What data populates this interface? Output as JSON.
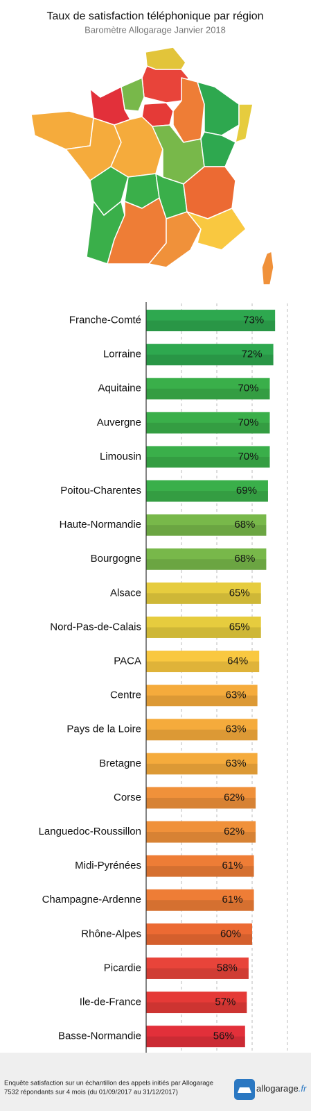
{
  "title": "Taux de satisfaction téléphonique par région",
  "subtitle": "Baromètre Allogarage Janvier 2018",
  "chart_data": {
    "type": "hbar",
    "categories": [
      "Franche-Comté",
      "Lorraine",
      "Aquitaine",
      "Auvergne",
      "Limousin",
      "Poitou-Charentes",
      "Haute-Normandie",
      "Bourgogne",
      "Alsace",
      "Nord-Pas-de-Calais",
      "PACA",
      "Centre",
      "Pays de la Loire",
      "Bretagne",
      "Corse",
      "Languedoc-Roussillon",
      "Midi-Pyrénées",
      "Champagne-Ardenne",
      "Rhône-Alpes",
      "Picardie",
      "Ile-de-France",
      "Basse-Normandie"
    ],
    "values": [
      73,
      72,
      70,
      70,
      70,
      69,
      68,
      68,
      65,
      65,
      64,
      63,
      63,
      63,
      62,
      62,
      61,
      61,
      60,
      58,
      57,
      56
    ],
    "value_labels": [
      "73%",
      "72%",
      "70%",
      "70%",
      "70%",
      "69%",
      "68%",
      "68%",
      "65%",
      "65%",
      "64%",
      "63%",
      "63%",
      "63%",
      "62%",
      "62%",
      "61%",
      "61%",
      "60%",
      "58%",
      "57%",
      "56%"
    ],
    "colors": [
      "#2ea84f",
      "#2ea84f",
      "#3aaf4a",
      "#3aaf4a",
      "#3aaf4a",
      "#3aaf4a",
      "#78b84a",
      "#78b84a",
      "#e6cc3e",
      "#e6cc3e",
      "#f9c840",
      "#f5ab3c",
      "#f5ab3c",
      "#f5ab3c",
      "#f0913a",
      "#f0913a",
      "#ee7d36",
      "#ee7d36",
      "#ec6a33",
      "#e8443a",
      "#e53a37",
      "#e2303a"
    ],
    "xlim": [
      0,
      80
    ],
    "xticks": [
      20,
      40,
      60,
      80
    ],
    "grid": true
  },
  "footer": {
    "line1": "Enquête satisfaction sur un échantillon des appels initiés par Allogarage",
    "line2": "7532 répondants sur 4 mois (du 01/09/2017 au 31/12/2017)",
    "logo": "allogarage",
    "logo_suffix": ".fr"
  }
}
